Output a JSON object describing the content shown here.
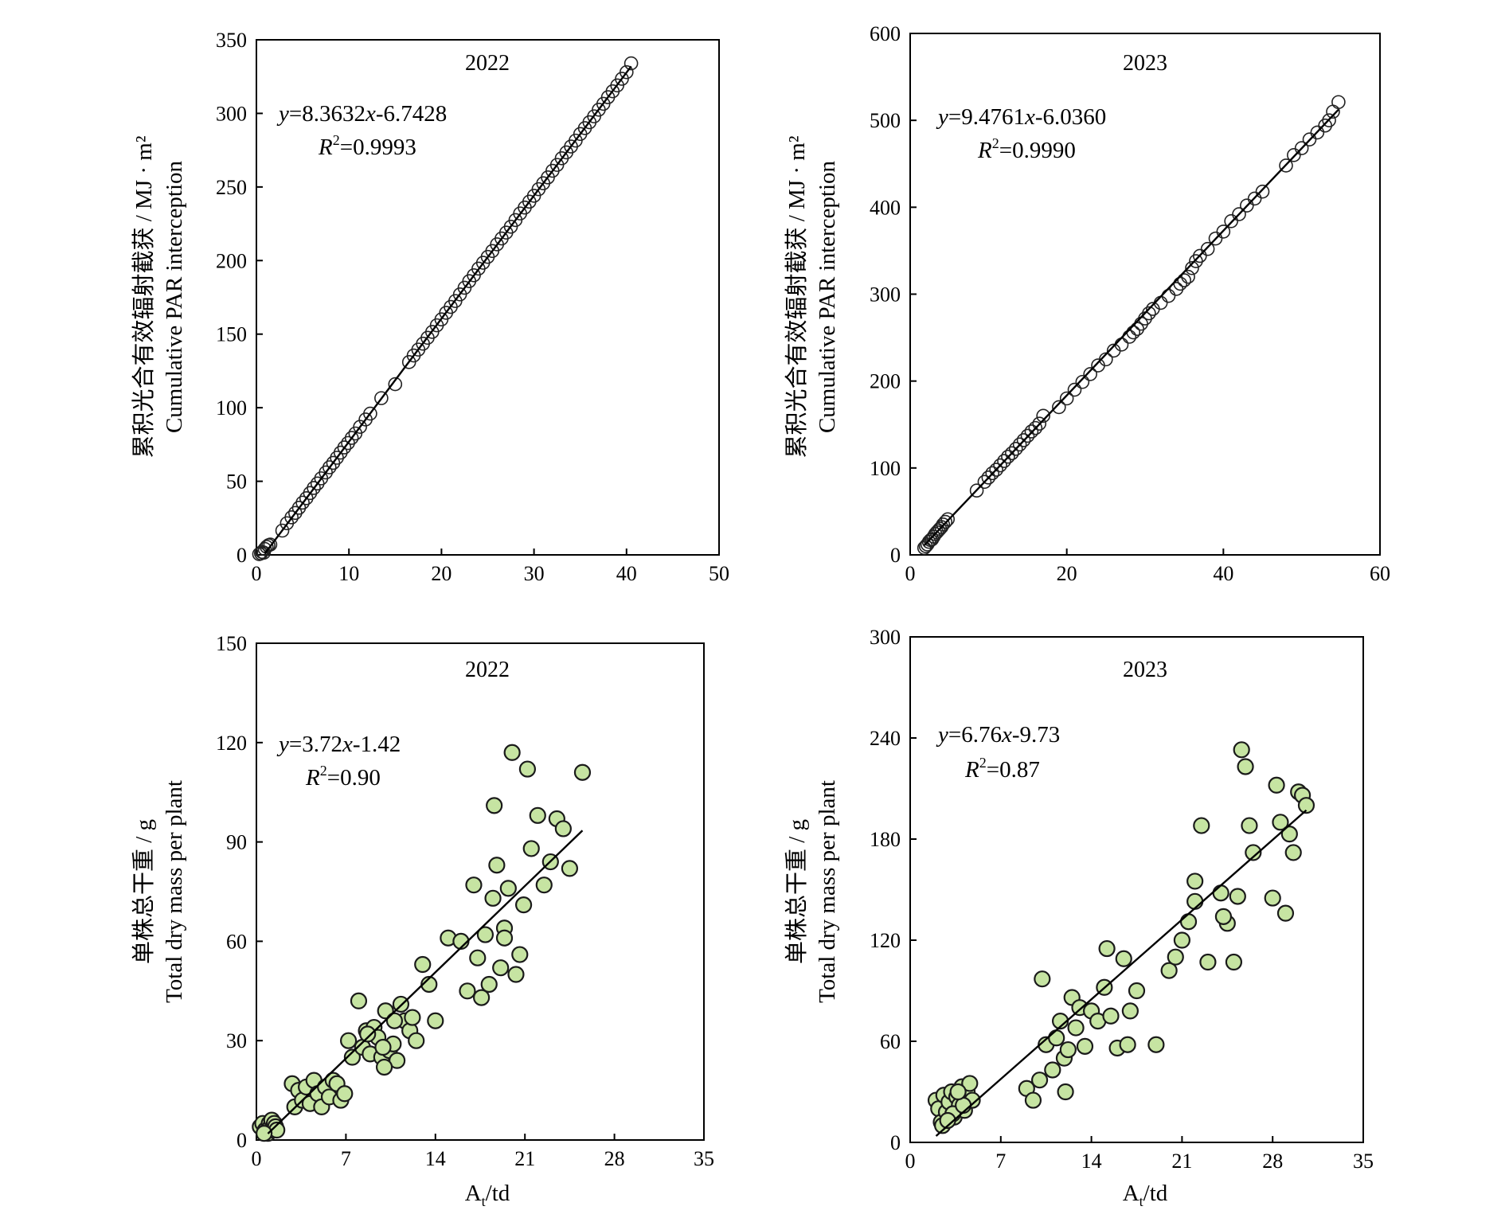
{
  "chart_data": [
    {
      "type": "scatter",
      "id": "par-2022",
      "title": "2022",
      "xlabel": "",
      "ylabel_zh": "累积光合有效辐射截获 / MJ · m²",
      "ylabel_en": "Cumulative PAR interception",
      "xlim": [
        0,
        50
      ],
      "ylim": [
        0,
        350
      ],
      "xticks": [
        0,
        10,
        20,
        30,
        40,
        50
      ],
      "yticks": [
        0,
        50,
        100,
        150,
        200,
        250,
        300,
        350
      ],
      "equation": {
        "y": "y",
        "eq": "=8.3632",
        "x": "x",
        "rest": "-6.7428"
      },
      "r2": {
        "r": "R",
        "sup": "2",
        "val": "=0.9993"
      },
      "fit": {
        "slope": 8.3632,
        "intercept": -6.7428,
        "x_range": [
          0.9,
          40.5
        ]
      },
      "marker": "open",
      "x": [
        0.3,
        0.5,
        0.6,
        0.8,
        0.9,
        1.1,
        1.3,
        1.5,
        2.8,
        3.3,
        3.8,
        4.2,
        4.6,
        5.0,
        5.4,
        5.8,
        6.2,
        6.6,
        7.0,
        7.5,
        7.9,
        8.3,
        8.7,
        9.1,
        9.5,
        9.9,
        10.3,
        10.7,
        11.2,
        11.8,
        12.3,
        13.5,
        15.0,
        16.5,
        17.0,
        17.5,
        18.0,
        18.5,
        19.0,
        19.5,
        20.0,
        20.5,
        21.0,
        21.5,
        22.0,
        22.5,
        23.0,
        23.5,
        24.0,
        24.5,
        25.0,
        25.5,
        26.0,
        26.5,
        27.0,
        27.5,
        28.0,
        28.5,
        29.0,
        29.5,
        30.0,
        30.5,
        31.0,
        31.5,
        32.0,
        32.5,
        33.0,
        33.5,
        34.0,
        34.5,
        35.0,
        35.5,
        36.0,
        36.5,
        37.0,
        37.5,
        38.0,
        38.5,
        39.0,
        39.5,
        40.0,
        40.5
      ],
      "y": [
        0.5,
        1.0,
        2.0,
        1.5,
        4.0,
        5.5,
        6.5,
        7.0,
        16.5,
        21.5,
        25.5,
        28.5,
        32.0,
        35.5,
        38.5,
        42.0,
        45.5,
        48.5,
        52.0,
        56.0,
        59.5,
        62.5,
        66.0,
        69.5,
        73.0,
        76.0,
        79.5,
        82.5,
        87.0,
        92.0,
        96.0,
        106.5,
        116.0,
        131.0,
        135.5,
        139.5,
        143.5,
        147.5,
        151.5,
        156.0,
        160.0,
        164.5,
        168.5,
        172.5,
        177.0,
        181.5,
        186.0,
        190.0,
        194.5,
        198.5,
        202.5,
        206.5,
        211.0,
        215.0,
        219.0,
        223.0,
        227.5,
        232.0,
        236.0,
        240.0,
        244.0,
        248.5,
        252.5,
        256.5,
        261.0,
        265.0,
        269.5,
        273.5,
        277.5,
        281.5,
        286.0,
        290.0,
        294.0,
        298.0,
        302.5,
        306.5,
        311.0,
        315.0,
        319.0,
        323.5,
        328.0,
        334.0
      ]
    },
    {
      "type": "scatter",
      "id": "par-2023",
      "title": "2023",
      "xlabel": "",
      "ylabel_zh": "累积光合有效辐射截获 / MJ · m²",
      "ylabel_en": "Cumulative PAR interception",
      "xlim": [
        0,
        60
      ],
      "ylim": [
        0,
        600
      ],
      "xticks": [
        0,
        20,
        40,
        60
      ],
      "yticks": [
        0,
        100,
        200,
        300,
        400,
        500,
        600
      ],
      "equation": {
        "y": "y",
        "eq": "=9.4761",
        "x": "x",
        "rest": "-6.0360"
      },
      "r2": {
        "r": "R",
        "sup": "2",
        "val": "=0.9990"
      },
      "fit": {
        "slope": 9.4761,
        "intercept": -6.036,
        "x_range": [
          1.8,
          54.7
        ]
      },
      "marker": "open",
      "x": [
        1.8,
        2.0,
        2.2,
        2.4,
        2.6,
        2.8,
        3.0,
        3.2,
        3.4,
        3.6,
        3.8,
        4.0,
        4.2,
        4.5,
        4.8,
        8.5,
        9.5,
        10.0,
        10.5,
        11.0,
        11.5,
        12.0,
        12.5,
        13.0,
        13.5,
        14.0,
        14.5,
        15.0,
        15.5,
        16.0,
        16.5,
        17.0,
        19.0,
        20.0,
        21.0,
        22.0,
        23.0,
        24.0,
        25.0,
        26.0,
        27.0,
        28.0,
        28.5,
        29.0,
        29.5,
        30.0,
        30.5,
        31.0,
        32.0,
        33.0,
        34.0,
        34.5,
        35.0,
        35.5,
        36.0,
        36.5,
        37.0,
        38.0,
        39.0,
        40.0,
        41.0,
        42.0,
        43.0,
        44.0,
        45.0,
        48.0,
        49.0,
        50.0,
        51.0,
        52.0,
        53.0,
        53.5,
        54.0,
        54.7
      ],
      "y": [
        8,
        10,
        12,
        15,
        17,
        18,
        21,
        24,
        26,
        28,
        30,
        32,
        35,
        38,
        41,
        74,
        84,
        89,
        94,
        98,
        103,
        108,
        113,
        117,
        122,
        127,
        132,
        137,
        142,
        146,
        151,
        160,
        170,
        180,
        190,
        199,
        208,
        218,
        225,
        235,
        242,
        251,
        256,
        260,
        266,
        272,
        278,
        283,
        290,
        298,
        306,
        312,
        316,
        320,
        330,
        338,
        344,
        352,
        364,
        372,
        384,
        392,
        402,
        410,
        418,
        448,
        460,
        468,
        478,
        486,
        494,
        500,
        510,
        521
      ]
    },
    {
      "type": "scatter",
      "id": "dm-2022",
      "title": "2022",
      "xlabel_main": "A",
      "xlabel_sub": "t",
      "xlabel_rest": "/td",
      "ylabel_zh": "单株总干重 / g",
      "ylabel_en": "Total dry mass per plant",
      "xlim": [
        0,
        35
      ],
      "ylim": [
        0,
        150
      ],
      "xticks": [
        0,
        7,
        14,
        21,
        28,
        35
      ],
      "yticks": [
        0,
        30,
        60,
        90,
        120,
        150
      ],
      "equation": {
        "y": "y",
        "eq": "=3.72",
        "x": "x",
        "rest": "-1.42"
      },
      "r2": {
        "r": "R",
        "sup": "2",
        "val": "=0.90"
      },
      "fit": {
        "slope": 3.72,
        "intercept": -1.42,
        "x_range": [
          0.9,
          25.5
        ]
      },
      "marker": "filled",
      "x": [
        0.3,
        0.5,
        0.7,
        0.9,
        1.0,
        1.1,
        1.2,
        1.3,
        1.4,
        1.5,
        1.6,
        0.6,
        2.8,
        3.0,
        3.3,
        3.6,
        3.9,
        4.2,
        4.5,
        4.8,
        5.1,
        5.4,
        5.7,
        6.0,
        6.3,
        6.6,
        6.9,
        7.2,
        7.5,
        8.0,
        8.3,
        8.6,
        8.9,
        9.2,
        9.5,
        9.8,
        10.1,
        10.4,
        10.7,
        11.0,
        11.3,
        11.6,
        12.0,
        12.5,
        13.0,
        13.5,
        14.0,
        15.0,
        16.0,
        16.5,
        17.0,
        17.3,
        17.6,
        17.9,
        18.2,
        18.5,
        18.8,
        19.1,
        19.4,
        19.7,
        20.0,
        20.3,
        20.6,
        20.9,
        21.2,
        21.5,
        22.0,
        22.5,
        23.0,
        23.5,
        24.0,
        24.5,
        25.5,
        8.7,
        9.9,
        10.8,
        18.6,
        19.4,
        12.2,
        10.0
      ],
      "y": [
        4,
        5,
        3,
        2,
        5,
        4,
        6,
        3,
        5,
        4,
        3,
        2,
        17,
        10,
        15,
        12,
        16,
        11,
        18,
        14,
        10,
        16,
        13,
        18,
        17,
        12,
        14,
        30,
        25,
        42,
        28,
        33,
        26,
        34,
        31,
        25,
        39,
        27,
        29,
        24,
        41,
        36,
        33,
        30,
        53,
        47,
        36,
        61,
        60,
        45,
        77,
        55,
        43,
        62,
        47,
        73,
        83,
        52,
        64,
        76,
        117,
        50,
        56,
        71,
        112,
        88,
        98,
        77,
        84,
        97,
        94,
        82,
        111,
        32,
        28,
        36,
        101,
        61,
        37,
        22
      ]
    },
    {
      "type": "scatter",
      "id": "dm-2023",
      "title": "2023",
      "xlabel_main": "A",
      "xlabel_sub": "t",
      "xlabel_rest": "/td",
      "ylabel_zh": "单株总干重 / g",
      "ylabel_en": "Total dry mass per plant",
      "xlim": [
        0,
        35
      ],
      "ylim": [
        0,
        300
      ],
      "xticks": [
        0,
        7,
        14,
        21,
        28,
        35
      ],
      "yticks": [
        0,
        60,
        120,
        180,
        240,
        300
      ],
      "equation": {
        "y": "y",
        "eq": "=6.76",
        "x": "x",
        "rest": "-9.73"
      },
      "r2": {
        "r": "R",
        "sup": "2",
        "val": "=0.87"
      },
      "fit": {
        "slope": 6.76,
        "intercept": -9.73,
        "x_range": [
          2.0,
          30.6
        ]
      },
      "marker": "filled",
      "x": [
        2.0,
        2.2,
        2.4,
        2.6,
        2.8,
        3.0,
        3.2,
        3.4,
        3.6,
        3.8,
        4.0,
        4.2,
        4.4,
        4.6,
        4.8,
        2.5,
        3.3,
        4.1,
        2.9,
        3.7,
        9.0,
        9.5,
        10.0,
        10.5,
        11.0,
        11.3,
        11.6,
        11.9,
        12.2,
        12.5,
        12.8,
        13.1,
        13.5,
        14.0,
        14.5,
        15.0,
        15.5,
        16.0,
        16.5,
        17.0,
        17.5,
        10.2,
        12.0,
        19.0,
        20.0,
        20.5,
        21.0,
        21.5,
        22.0,
        22.5,
        23.0,
        24.0,
        24.5,
        25.0,
        25.3,
        25.6,
        25.9,
        26.2,
        26.5,
        28.0,
        28.3,
        28.6,
        29.0,
        29.3,
        29.6,
        30.0,
        30.3,
        30.6,
        15.2,
        16.8,
        22.0,
        24.2
      ],
      "y": [
        25,
        20,
        12,
        28,
        18,
        24,
        30,
        15,
        27,
        22,
        33,
        19,
        30,
        35,
        25,
        10,
        17,
        22,
        13,
        30,
        32,
        25,
        37,
        58,
        43,
        62,
        72,
        50,
        55,
        86,
        68,
        80,
        57,
        78,
        72,
        92,
        75,
        56,
        109,
        78,
        90,
        97,
        30,
        58,
        102,
        110,
        120,
        131,
        155,
        188,
        107,
        148,
        130,
        107,
        146,
        233,
        223,
        188,
        172,
        145,
        212,
        190,
        136,
        183,
        172,
        208,
        206,
        200,
        115,
        58,
        143,
        134
      ]
    }
  ]
}
